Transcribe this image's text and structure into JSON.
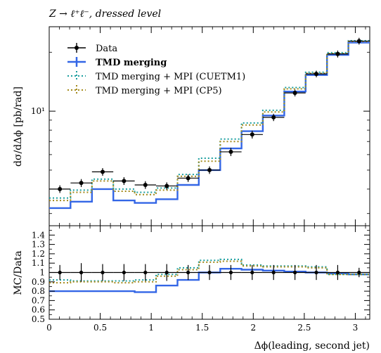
{
  "chart_data": {
    "type": "line",
    "title": "Z → ℓ⁺ℓ⁻, dressed level",
    "xlabel": "Δϕ(leading, second jet)",
    "main_panel": {
      "ylabel": "dσ/dΔϕ [pb/rad]",
      "yscale": "log",
      "ylim": [
        2.6,
        27
      ],
      "y_ticks": [
        {
          "value": 10,
          "label": "10¹"
        }
      ],
      "legend_position": "top-left"
    },
    "ratio_panel": {
      "ylabel": "MC/Data",
      "ylim": [
        0.5,
        1.5
      ],
      "y_ticks": [
        {
          "value": 0.5,
          "label": "0.5"
        },
        {
          "value": 0.6,
          "label": "0.6"
        },
        {
          "value": 0.7,
          "label": "0.7"
        },
        {
          "value": 0.8,
          "label": "0.8"
        },
        {
          "value": 0.9,
          "label": "0.9"
        },
        {
          "value": 1.0,
          "label": "1"
        },
        {
          "value": 1.1,
          "label": "1.1"
        },
        {
          "value": 1.2,
          "label": "1.2"
        },
        {
          "value": 1.3,
          "label": "1.3"
        },
        {
          "value": 1.4,
          "label": "1.4"
        }
      ]
    },
    "xlim": [
      0,
      3.1416
    ],
    "x_ticks": [
      {
        "value": 0,
        "label": "0"
      },
      {
        "value": 0.5,
        "label": "0.5"
      },
      {
        "value": 1,
        "label": "1"
      },
      {
        "value": 1.5,
        "label": "1.5"
      },
      {
        "value": 2,
        "label": "2"
      },
      {
        "value": 2.5,
        "label": "2.5"
      },
      {
        "value": 3,
        "label": "3"
      }
    ],
    "bin_edges": [
      0,
      0.209,
      0.419,
      0.628,
      0.838,
      1.047,
      1.257,
      1.466,
      1.676,
      1.885,
      2.094,
      2.304,
      2.513,
      2.723,
      2.932,
      3.1416
    ],
    "series": [
      {
        "name": "Data",
        "style": "points",
        "color": "#000000",
        "values": [
          4.0,
          4.3,
          4.9,
          4.4,
          4.2,
          4.15,
          4.55,
          5.0,
          6.2,
          7.6,
          9.3,
          12.4,
          15.5,
          19.6,
          22.8
        ],
        "y_errors": [
          0.18,
          0.2,
          0.22,
          0.2,
          0.19,
          0.18,
          0.2,
          0.22,
          0.3,
          0.35,
          0.4,
          0.5,
          0.6,
          0.8,
          0.9
        ],
        "ratio": [
          1.0,
          1.0,
          1.0,
          1.0,
          1.0,
          1.0,
          1.0,
          1.0,
          1.0,
          1.0,
          1.0,
          1.0,
          1.0,
          1.0,
          1.0
        ],
        "ratio_errors": [
          0.08,
          0.1,
          0.09,
          0.09,
          0.09,
          0.09,
          0.08,
          0.08,
          0.08,
          0.08,
          0.08,
          0.08,
          0.08,
          0.08,
          0.05
        ]
      },
      {
        "name": "TMD merging",
        "style": "step-solid",
        "color": "#3366e6",
        "values": [
          3.2,
          3.45,
          4.0,
          3.5,
          3.4,
          3.55,
          4.2,
          5.0,
          6.45,
          7.9,
          9.5,
          12.6,
          15.3,
          19.4,
          22.4
        ],
        "ratio": [
          0.8,
          0.8,
          0.8,
          0.8,
          0.79,
          0.86,
          0.92,
          1.0,
          1.04,
          1.03,
          1.02,
          1.01,
          1.0,
          0.99,
          0.98
        ]
      },
      {
        "name": "TMD merging + MPI (CUETM1)",
        "style": "step-dotted",
        "color": "#1a9e9e",
        "values": [
          3.6,
          3.95,
          4.5,
          4.0,
          3.85,
          4.05,
          4.75,
          5.75,
          7.2,
          8.7,
          10.1,
          13.2,
          15.8,
          19.9,
          22.9
        ],
        "ratio": [
          0.92,
          0.91,
          0.91,
          0.91,
          0.92,
          0.98,
          1.05,
          1.13,
          1.14,
          1.08,
          1.07,
          1.07,
          1.06,
          0.98,
          0.98
        ]
      },
      {
        "name": "TMD merging + MPI (CP5)",
        "style": "step-dotted",
        "color": "#a48a1c",
        "values": [
          3.5,
          3.85,
          4.4,
          3.9,
          3.75,
          3.95,
          4.65,
          5.55,
          7.0,
          8.5,
          9.9,
          13.0,
          15.6,
          19.7,
          22.7
        ],
        "ratio": [
          0.89,
          0.9,
          0.9,
          0.89,
          0.9,
          0.96,
          1.03,
          1.11,
          1.12,
          1.07,
          1.06,
          1.06,
          1.05,
          0.98,
          0.98
        ]
      }
    ]
  }
}
